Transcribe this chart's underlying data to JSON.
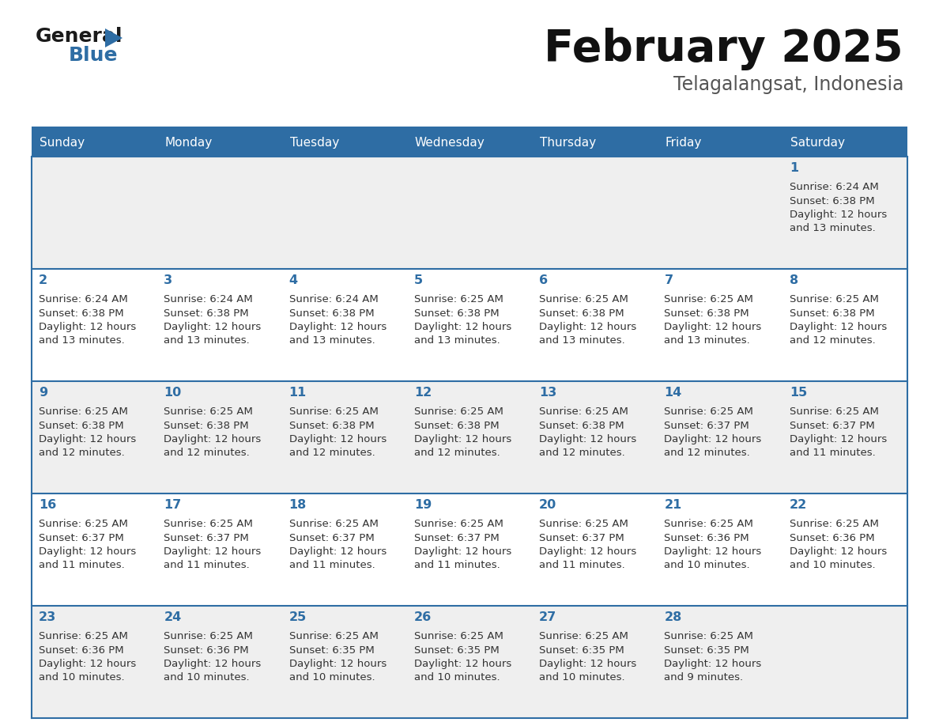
{
  "title": "February 2025",
  "subtitle": "Telagalangsat, Indonesia",
  "days_of_week": [
    "Sunday",
    "Monday",
    "Tuesday",
    "Wednesday",
    "Thursday",
    "Friday",
    "Saturday"
  ],
  "header_bg": "#2E6DA4",
  "header_text": "#FFFFFF",
  "cell_bg_odd": "#EFEFEF",
  "cell_bg_even": "#FFFFFF",
  "text_color": "#333333",
  "day_num_color": "#2E6DA4",
  "logo_general_color": "#1a1a1a",
  "logo_blue_color": "#2E6DA4",
  "weeks": [
    [
      {
        "day": null,
        "sunrise": null,
        "sunset": null,
        "daylight": null
      },
      {
        "day": null,
        "sunrise": null,
        "sunset": null,
        "daylight": null
      },
      {
        "day": null,
        "sunrise": null,
        "sunset": null,
        "daylight": null
      },
      {
        "day": null,
        "sunrise": null,
        "sunset": null,
        "daylight": null
      },
      {
        "day": null,
        "sunrise": null,
        "sunset": null,
        "daylight": null
      },
      {
        "day": null,
        "sunrise": null,
        "sunset": null,
        "daylight": null
      },
      {
        "day": 1,
        "sunrise": "6:24 AM",
        "sunset": "6:38 PM",
        "daylight": "12 hours",
        "daylight2": "and 13 minutes."
      }
    ],
    [
      {
        "day": 2,
        "sunrise": "6:24 AM",
        "sunset": "6:38 PM",
        "daylight": "12 hours",
        "daylight2": "and 13 minutes."
      },
      {
        "day": 3,
        "sunrise": "6:24 AM",
        "sunset": "6:38 PM",
        "daylight": "12 hours",
        "daylight2": "and 13 minutes."
      },
      {
        "day": 4,
        "sunrise": "6:24 AM",
        "sunset": "6:38 PM",
        "daylight": "12 hours",
        "daylight2": "and 13 minutes."
      },
      {
        "day": 5,
        "sunrise": "6:25 AM",
        "sunset": "6:38 PM",
        "daylight": "12 hours",
        "daylight2": "and 13 minutes."
      },
      {
        "day": 6,
        "sunrise": "6:25 AM",
        "sunset": "6:38 PM",
        "daylight": "12 hours",
        "daylight2": "and 13 minutes."
      },
      {
        "day": 7,
        "sunrise": "6:25 AM",
        "sunset": "6:38 PM",
        "daylight": "12 hours",
        "daylight2": "and 13 minutes."
      },
      {
        "day": 8,
        "sunrise": "6:25 AM",
        "sunset": "6:38 PM",
        "daylight": "12 hours",
        "daylight2": "and 12 minutes."
      }
    ],
    [
      {
        "day": 9,
        "sunrise": "6:25 AM",
        "sunset": "6:38 PM",
        "daylight": "12 hours",
        "daylight2": "and 12 minutes."
      },
      {
        "day": 10,
        "sunrise": "6:25 AM",
        "sunset": "6:38 PM",
        "daylight": "12 hours",
        "daylight2": "and 12 minutes."
      },
      {
        "day": 11,
        "sunrise": "6:25 AM",
        "sunset": "6:38 PM",
        "daylight": "12 hours",
        "daylight2": "and 12 minutes."
      },
      {
        "day": 12,
        "sunrise": "6:25 AM",
        "sunset": "6:38 PM",
        "daylight": "12 hours",
        "daylight2": "and 12 minutes."
      },
      {
        "day": 13,
        "sunrise": "6:25 AM",
        "sunset": "6:38 PM",
        "daylight": "12 hours",
        "daylight2": "and 12 minutes."
      },
      {
        "day": 14,
        "sunrise": "6:25 AM",
        "sunset": "6:37 PM",
        "daylight": "12 hours",
        "daylight2": "and 12 minutes."
      },
      {
        "day": 15,
        "sunrise": "6:25 AM",
        "sunset": "6:37 PM",
        "daylight": "12 hours",
        "daylight2": "and 11 minutes."
      }
    ],
    [
      {
        "day": 16,
        "sunrise": "6:25 AM",
        "sunset": "6:37 PM",
        "daylight": "12 hours",
        "daylight2": "and 11 minutes."
      },
      {
        "day": 17,
        "sunrise": "6:25 AM",
        "sunset": "6:37 PM",
        "daylight": "12 hours",
        "daylight2": "and 11 minutes."
      },
      {
        "day": 18,
        "sunrise": "6:25 AM",
        "sunset": "6:37 PM",
        "daylight": "12 hours",
        "daylight2": "and 11 minutes."
      },
      {
        "day": 19,
        "sunrise": "6:25 AM",
        "sunset": "6:37 PM",
        "daylight": "12 hours",
        "daylight2": "and 11 minutes."
      },
      {
        "day": 20,
        "sunrise": "6:25 AM",
        "sunset": "6:37 PM",
        "daylight": "12 hours",
        "daylight2": "and 11 minutes."
      },
      {
        "day": 21,
        "sunrise": "6:25 AM",
        "sunset": "6:36 PM",
        "daylight": "12 hours",
        "daylight2": "and 10 minutes."
      },
      {
        "day": 22,
        "sunrise": "6:25 AM",
        "sunset": "6:36 PM",
        "daylight": "12 hours",
        "daylight2": "and 10 minutes."
      }
    ],
    [
      {
        "day": 23,
        "sunrise": "6:25 AM",
        "sunset": "6:36 PM",
        "daylight": "12 hours",
        "daylight2": "and 10 minutes."
      },
      {
        "day": 24,
        "sunrise": "6:25 AM",
        "sunset": "6:36 PM",
        "daylight": "12 hours",
        "daylight2": "and 10 minutes."
      },
      {
        "day": 25,
        "sunrise": "6:25 AM",
        "sunset": "6:35 PM",
        "daylight": "12 hours",
        "daylight2": "and 10 minutes."
      },
      {
        "day": 26,
        "sunrise": "6:25 AM",
        "sunset": "6:35 PM",
        "daylight": "12 hours",
        "daylight2": "and 10 minutes."
      },
      {
        "day": 27,
        "sunrise": "6:25 AM",
        "sunset": "6:35 PM",
        "daylight": "12 hours",
        "daylight2": "and 10 minutes."
      },
      {
        "day": 28,
        "sunrise": "6:25 AM",
        "sunset": "6:35 PM",
        "daylight": "12 hours",
        "daylight2": "and 9 minutes."
      },
      {
        "day": null,
        "sunrise": null,
        "sunset": null,
        "daylight": null,
        "daylight2": null
      }
    ]
  ]
}
